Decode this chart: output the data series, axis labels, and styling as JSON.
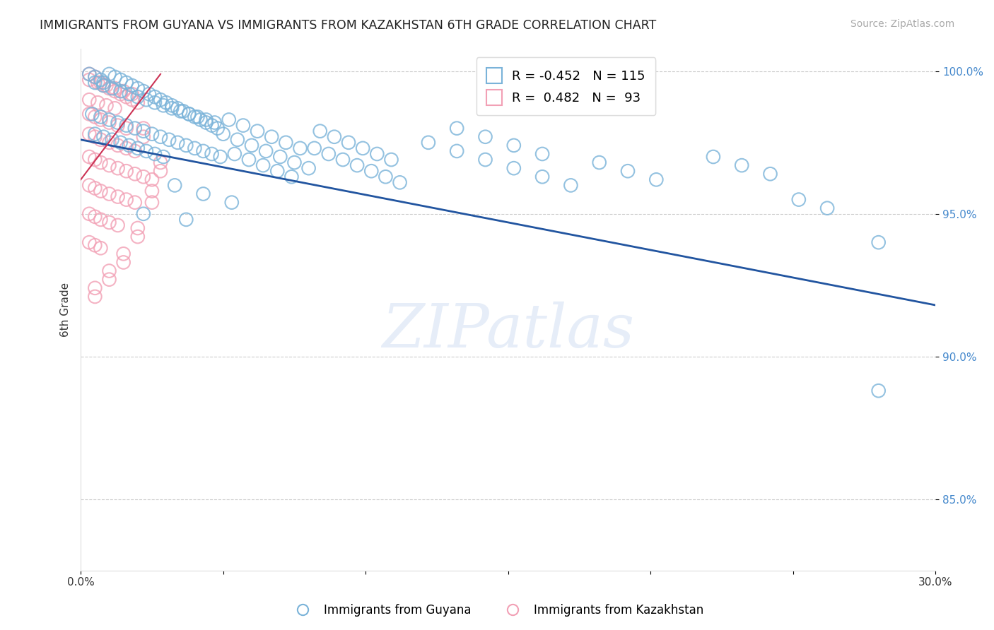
{
  "title": "IMMIGRANTS FROM GUYANA VS IMMIGRANTS FROM KAZAKHSTAN 6TH GRADE CORRELATION CHART",
  "source": "Source: ZipAtlas.com",
  "ylabel": "6th Grade",
  "xmin": 0.0,
  "xmax": 0.3,
  "ymin": 0.825,
  "ymax": 1.008,
  "ytick_vals": [
    0.85,
    0.9,
    0.95,
    1.0
  ],
  "ytick_labels": [
    "85.0%",
    "90.0%",
    "95.0%",
    "100.0%"
  ],
  "xtick_vals": [
    0.0,
    0.05,
    0.1,
    0.15,
    0.2,
    0.25,
    0.3
  ],
  "xtick_labels": [
    "0.0%",
    "",
    "",
    "",
    "",
    "",
    "30.0%"
  ],
  "legend_r_blue": "R = -0.452   N = 115",
  "legend_r_pink": "R =  0.482   N =  93",
  "legend_label_blue": "Immigrants from Guyana",
  "legend_label_pink": "Immigrants from Kazakhstan",
  "blue_color": "#7ab3d9",
  "pink_color": "#f2a0b5",
  "trendline_blue_color": "#2255a0",
  "trendline_pink_color": "#cc3355",
  "trendline_blue": [
    0.0,
    0.976,
    0.3,
    0.918
  ],
  "trendline_pink": [
    0.0,
    0.962,
    0.028,
    0.999
  ],
  "watermark": "ZIPatlas",
  "blue_x": [
    0.003,
    0.005,
    0.007,
    0.008,
    0.01,
    0.012,
    0.014,
    0.016,
    0.018,
    0.02,
    0.022,
    0.024,
    0.026,
    0.028,
    0.03,
    0.032,
    0.034,
    0.036,
    0.038,
    0.04,
    0.042,
    0.044,
    0.046,
    0.048,
    0.005,
    0.008,
    0.011,
    0.014,
    0.017,
    0.02,
    0.023,
    0.026,
    0.029,
    0.032,
    0.035,
    0.038,
    0.041,
    0.044,
    0.047,
    0.004,
    0.007,
    0.01,
    0.013,
    0.016,
    0.019,
    0.022,
    0.025,
    0.028,
    0.031,
    0.034,
    0.037,
    0.04,
    0.043,
    0.046,
    0.049,
    0.005,
    0.008,
    0.011,
    0.014,
    0.017,
    0.02,
    0.023,
    0.026,
    0.029,
    0.05,
    0.055,
    0.06,
    0.065,
    0.07,
    0.075,
    0.08,
    0.052,
    0.057,
    0.062,
    0.067,
    0.072,
    0.077,
    0.054,
    0.059,
    0.064,
    0.069,
    0.074,
    0.082,
    0.087,
    0.092,
    0.097,
    0.102,
    0.107,
    0.112,
    0.084,
    0.089,
    0.094,
    0.099,
    0.104,
    0.109,
    0.122,
    0.132,
    0.142,
    0.152,
    0.162,
    0.172,
    0.132,
    0.142,
    0.152,
    0.162,
    0.182,
    0.192,
    0.202,
    0.222,
    0.232,
    0.242,
    0.252,
    0.262,
    0.28,
    0.033,
    0.043,
    0.053,
    0.022,
    0.037,
    0.28
  ],
  "blue_y": [
    0.999,
    0.998,
    0.997,
    0.996,
    0.999,
    0.998,
    0.997,
    0.996,
    0.995,
    0.994,
    0.993,
    0.992,
    0.991,
    0.99,
    0.989,
    0.988,
    0.987,
    0.986,
    0.985,
    0.984,
    0.983,
    0.982,
    0.981,
    0.98,
    0.996,
    0.995,
    0.994,
    0.993,
    0.992,
    0.991,
    0.99,
    0.989,
    0.988,
    0.987,
    0.986,
    0.985,
    0.984,
    0.983,
    0.982,
    0.985,
    0.984,
    0.983,
    0.982,
    0.981,
    0.98,
    0.979,
    0.978,
    0.977,
    0.976,
    0.975,
    0.974,
    0.973,
    0.972,
    0.971,
    0.97,
    0.978,
    0.977,
    0.976,
    0.975,
    0.974,
    0.973,
    0.972,
    0.971,
    0.97,
    0.978,
    0.976,
    0.974,
    0.972,
    0.97,
    0.968,
    0.966,
    0.983,
    0.981,
    0.979,
    0.977,
    0.975,
    0.973,
    0.971,
    0.969,
    0.967,
    0.965,
    0.963,
    0.973,
    0.971,
    0.969,
    0.967,
    0.965,
    0.963,
    0.961,
    0.979,
    0.977,
    0.975,
    0.973,
    0.971,
    0.969,
    0.975,
    0.972,
    0.969,
    0.966,
    0.963,
    0.96,
    0.98,
    0.977,
    0.974,
    0.971,
    0.968,
    0.965,
    0.962,
    0.97,
    0.967,
    0.964,
    0.955,
    0.952,
    0.94,
    0.96,
    0.957,
    0.954,
    0.95,
    0.948,
    0.888
  ],
  "pink_x": [
    0.003,
    0.005,
    0.007,
    0.008,
    0.01,
    0.012,
    0.014,
    0.016,
    0.018,
    0.02,
    0.003,
    0.006,
    0.009,
    0.012,
    0.015,
    0.018,
    0.003,
    0.006,
    0.009,
    0.012,
    0.003,
    0.005,
    0.007,
    0.01,
    0.013,
    0.016,
    0.003,
    0.005,
    0.007,
    0.01,
    0.013,
    0.016,
    0.019,
    0.003,
    0.005,
    0.007,
    0.01,
    0.013,
    0.016,
    0.019,
    0.022,
    0.003,
    0.005,
    0.007,
    0.01,
    0.013,
    0.016,
    0.019,
    0.003,
    0.005,
    0.007,
    0.01,
    0.013,
    0.003,
    0.005,
    0.007,
    0.025,
    0.025,
    0.025,
    0.02,
    0.02,
    0.015,
    0.015,
    0.01,
    0.01,
    0.005,
    0.005,
    0.028,
    0.028,
    0.022,
    0.022
  ],
  "pink_y": [
    0.999,
    0.998,
    0.996,
    0.995,
    0.994,
    0.993,
    0.992,
    0.991,
    0.99,
    0.989,
    0.997,
    0.996,
    0.995,
    0.994,
    0.993,
    0.992,
    0.99,
    0.989,
    0.988,
    0.987,
    0.985,
    0.984,
    0.983,
    0.982,
    0.981,
    0.98,
    0.978,
    0.977,
    0.976,
    0.975,
    0.974,
    0.973,
    0.972,
    0.97,
    0.969,
    0.968,
    0.967,
    0.966,
    0.965,
    0.964,
    0.963,
    0.96,
    0.959,
    0.958,
    0.957,
    0.956,
    0.955,
    0.954,
    0.95,
    0.949,
    0.948,
    0.947,
    0.946,
    0.94,
    0.939,
    0.938,
    0.962,
    0.958,
    0.954,
    0.945,
    0.942,
    0.936,
    0.933,
    0.93,
    0.927,
    0.924,
    0.921,
    0.968,
    0.965,
    0.98,
    0.977
  ]
}
